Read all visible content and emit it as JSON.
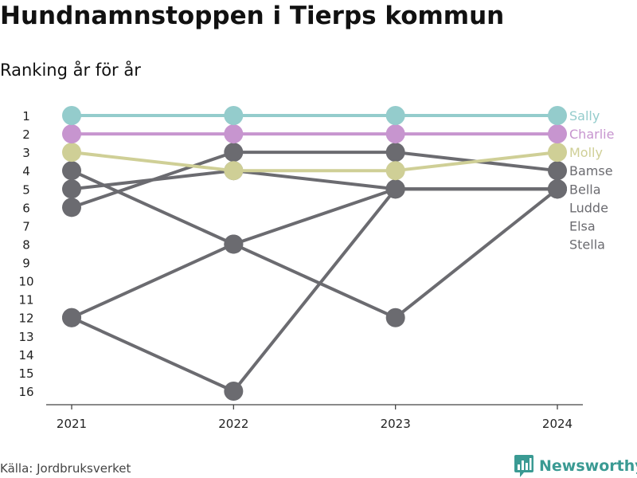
{
  "header": {
    "title": "Hundnamnstoppen i Tierps kommun",
    "subtitle": "Ranking år för år"
  },
  "footer": {
    "source": "Källa: Jordbruksverket",
    "brand": "Newsworthy",
    "brand_icon": "bar-chart-logo-icon",
    "brand_color": "#3a9a93"
  },
  "chart_data": {
    "type": "line",
    "x": [
      "2021",
      "2022",
      "2023",
      "2024"
    ],
    "y_ticks": [
      1,
      2,
      3,
      4,
      5,
      6,
      7,
      8,
      9,
      10,
      11,
      12,
      13,
      14,
      15,
      16
    ],
    "y_reversed": true,
    "ylim": [
      1,
      16
    ],
    "grid": false,
    "legend": "right-end-labels",
    "series": [
      {
        "name": "Stella",
        "values": [
          12,
          16,
          5,
          5
        ],
        "color": "#6b6b70"
      },
      {
        "name": "Elsa",
        "values": [
          12,
          8,
          5,
          5
        ],
        "color": "#6b6b70"
      },
      {
        "name": "Ludde",
        "values": [
          4,
          8,
          12,
          5
        ],
        "color": "#6b6b70"
      },
      {
        "name": "Bamse",
        "values": [
          6,
          3,
          3,
          4
        ],
        "color": "#6b6b70"
      },
      {
        "name": "Bella",
        "values": [
          5,
          4,
          5,
          5
        ],
        "color": "#6b6b70"
      },
      {
        "name": "Molly",
        "values": [
          3,
          4,
          4,
          3
        ],
        "color": "#cfcf96"
      },
      {
        "name": "Charlie",
        "values": [
          2,
          2,
          2,
          2
        ],
        "color": "#c795cf"
      },
      {
        "name": "Sally",
        "values": [
          1,
          1,
          1,
          1
        ],
        "color": "#94cccc"
      }
    ]
  }
}
